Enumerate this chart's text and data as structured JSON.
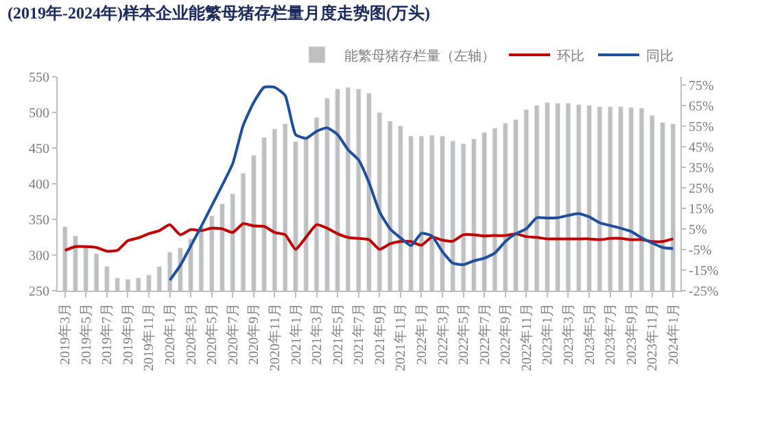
{
  "chart_data": {
    "type": "bar",
    "title": "(2019年-2024年)样本企业能繁母猪存栏量月度走势图(万头)",
    "categories": [
      "2019年3月",
      null,
      "2019年5月",
      null,
      "2019年7月",
      null,
      "2019年9月",
      null,
      "2019年11月",
      null,
      "2020年1月",
      null,
      "2020年3月",
      null,
      "2020年5月",
      null,
      "2020年7月",
      null,
      "2020年9月",
      null,
      "2020年11月",
      null,
      "2021年1月",
      null,
      "2021年3月",
      null,
      "2021年5月",
      null,
      "2021年7月",
      null,
      "2021年9月",
      null,
      "2021年11月",
      null,
      "2022年1月",
      null,
      "2022年3月",
      null,
      "2022年5月",
      null,
      "2022年7月",
      null,
      "2022年9月",
      null,
      "2022年11月",
      null,
      "2023年1月",
      null,
      "2023年3月",
      null,
      "2023年5月",
      null,
      "2023年7月",
      null,
      "2023年9月",
      null,
      "2023年11月",
      null,
      "2024年1月"
    ],
    "series": [
      {
        "name": "能繁母猪存栏量（左轴）",
        "color": "#bfbfbf",
        "values": [
          340,
          327,
          313,
          302,
          284,
          268,
          266,
          268,
          272,
          284,
          304,
          310,
          323,
          340,
          355,
          372,
          386,
          415,
          440,
          465,
          477,
          484,
          459,
          464,
          493,
          520,
          533,
          535,
          533,
          527,
          500,
          488,
          481,
          467,
          467,
          468,
          467,
          460,
          456,
          463,
          472,
          478,
          485,
          490,
          504,
          510,
          514,
          513,
          513,
          511,
          510,
          508,
          508,
          508,
          507,
          506,
          496,
          486,
          484
        ]
      },
      {
        "name": "环比",
        "type": "line",
        "axis": "y2",
        "color": "#c00000",
        "values": [
          -5.4,
          -3.6,
          -3.6,
          -4.0,
          -5.8,
          -5.4,
          -0.7,
          0.7,
          2.7,
          4.2,
          7.1,
          2.2,
          4.7,
          4.2,
          5.4,
          5.1,
          3.3,
          7.6,
          6.5,
          6.3,
          3.3,
          2.2,
          -4.9,
          1.1,
          7.1,
          5.4,
          2.7,
          0.9,
          0.4,
          -0.2,
          -4.9,
          -2.2,
          -1.1,
          -1.1,
          -2.9,
          1.1,
          -0.4,
          -0.9,
          2.2,
          2.2,
          1.6,
          1.8,
          1.8,
          2.7,
          1.3,
          0.9,
          0.2,
          0.2,
          0.2,
          0.2,
          0.2,
          -0.2,
          0.4,
          0.4,
          -0.2,
          -0.2,
          -1.1,
          -1.1,
          0.2
        ]
      },
      {
        "name": "同比",
        "type": "line",
        "axis": "y2",
        "color": "#1f4e9c",
        "values": [
          null,
          null,
          null,
          null,
          null,
          null,
          null,
          null,
          null,
          null,
          -19.9,
          -12.7,
          -3.3,
          6.3,
          16.3,
          26.3,
          36.8,
          55.4,
          66.5,
          73.9,
          73.9,
          69.9,
          50.9,
          49.1,
          52.5,
          54.2,
          50.9,
          43.5,
          38.6,
          27.5,
          13.4,
          5.1,
          0.7,
          -3.1,
          2.9,
          1.6,
          -6.0,
          -11.6,
          -12.3,
          -10.5,
          -9.2,
          -6.7,
          -1.1,
          2.7,
          5.1,
          10.5,
          10.3,
          10.5,
          11.6,
          12.5,
          10.9,
          8.0,
          6.7,
          5.4,
          3.8,
          0.7,
          -1.8,
          -4.0,
          -4.5
        ]
      }
    ],
    "ylim": [
      250,
      550
    ],
    "yticks": [
      250,
      300,
      350,
      400,
      450,
      500,
      550
    ],
    "y2lim": [
      -25,
      79
    ],
    "y2ticks": [
      {
        "value": -25,
        "label": "-25%"
      },
      {
        "value": -15,
        "label": "-15%"
      },
      {
        "value": -5,
        "label": "-5%"
      },
      {
        "value": 5,
        "label": "5%"
      },
      {
        "value": 15,
        "label": "15%"
      },
      {
        "value": 25,
        "label": "25%"
      },
      {
        "value": 35,
        "label": "35%"
      },
      {
        "value": 45,
        "label": "45%"
      },
      {
        "value": 55,
        "label": "55%"
      },
      {
        "value": 65,
        "label": "65%"
      },
      {
        "value": 75,
        "label": "75%"
      }
    ],
    "legend": "top right",
    "marker": "none",
    "line_style": "solid"
  }
}
